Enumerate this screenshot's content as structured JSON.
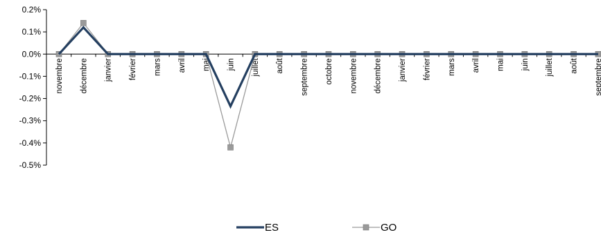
{
  "chart_data": {
    "type": "line",
    "categories": [
      "novembre",
      "décembre",
      "janvier",
      "février",
      "mars",
      "avril",
      "mai",
      "juin",
      "juillet",
      "août",
      "septembre",
      "octobre",
      "novembre",
      "décembre",
      "janvier",
      "février",
      "mars",
      "avril",
      "mai",
      "juin",
      "juillet",
      "août",
      "septembre"
    ],
    "y_ticks": [
      "0.2%",
      "0.1%",
      "0.0%",
      "-0.1%",
      "-0.2%",
      "-0.3%",
      "-0.4%",
      "-0.5%"
    ],
    "ylim": [
      -0.5,
      0.2
    ],
    "y_unit": "%",
    "grid": false,
    "legend_position": "bottom",
    "series": [
      {
        "name": "ES",
        "color": "#243F60",
        "marker": "none",
        "values": [
          0,
          0.12,
          0,
          0,
          0,
          0,
          0,
          -0.235,
          0,
          0,
          0,
          0,
          0,
          0,
          0,
          0,
          0,
          0,
          0,
          0,
          0,
          0,
          0
        ]
      },
      {
        "name": "GO",
        "color": "#9A9A9A",
        "marker": "square",
        "values": [
          0,
          0.14,
          0,
          0,
          0,
          0,
          0,
          -0.42,
          0,
          0,
          0,
          0,
          0,
          0,
          0,
          0,
          0,
          0,
          0,
          0,
          0,
          0,
          0
        ]
      }
    ]
  }
}
